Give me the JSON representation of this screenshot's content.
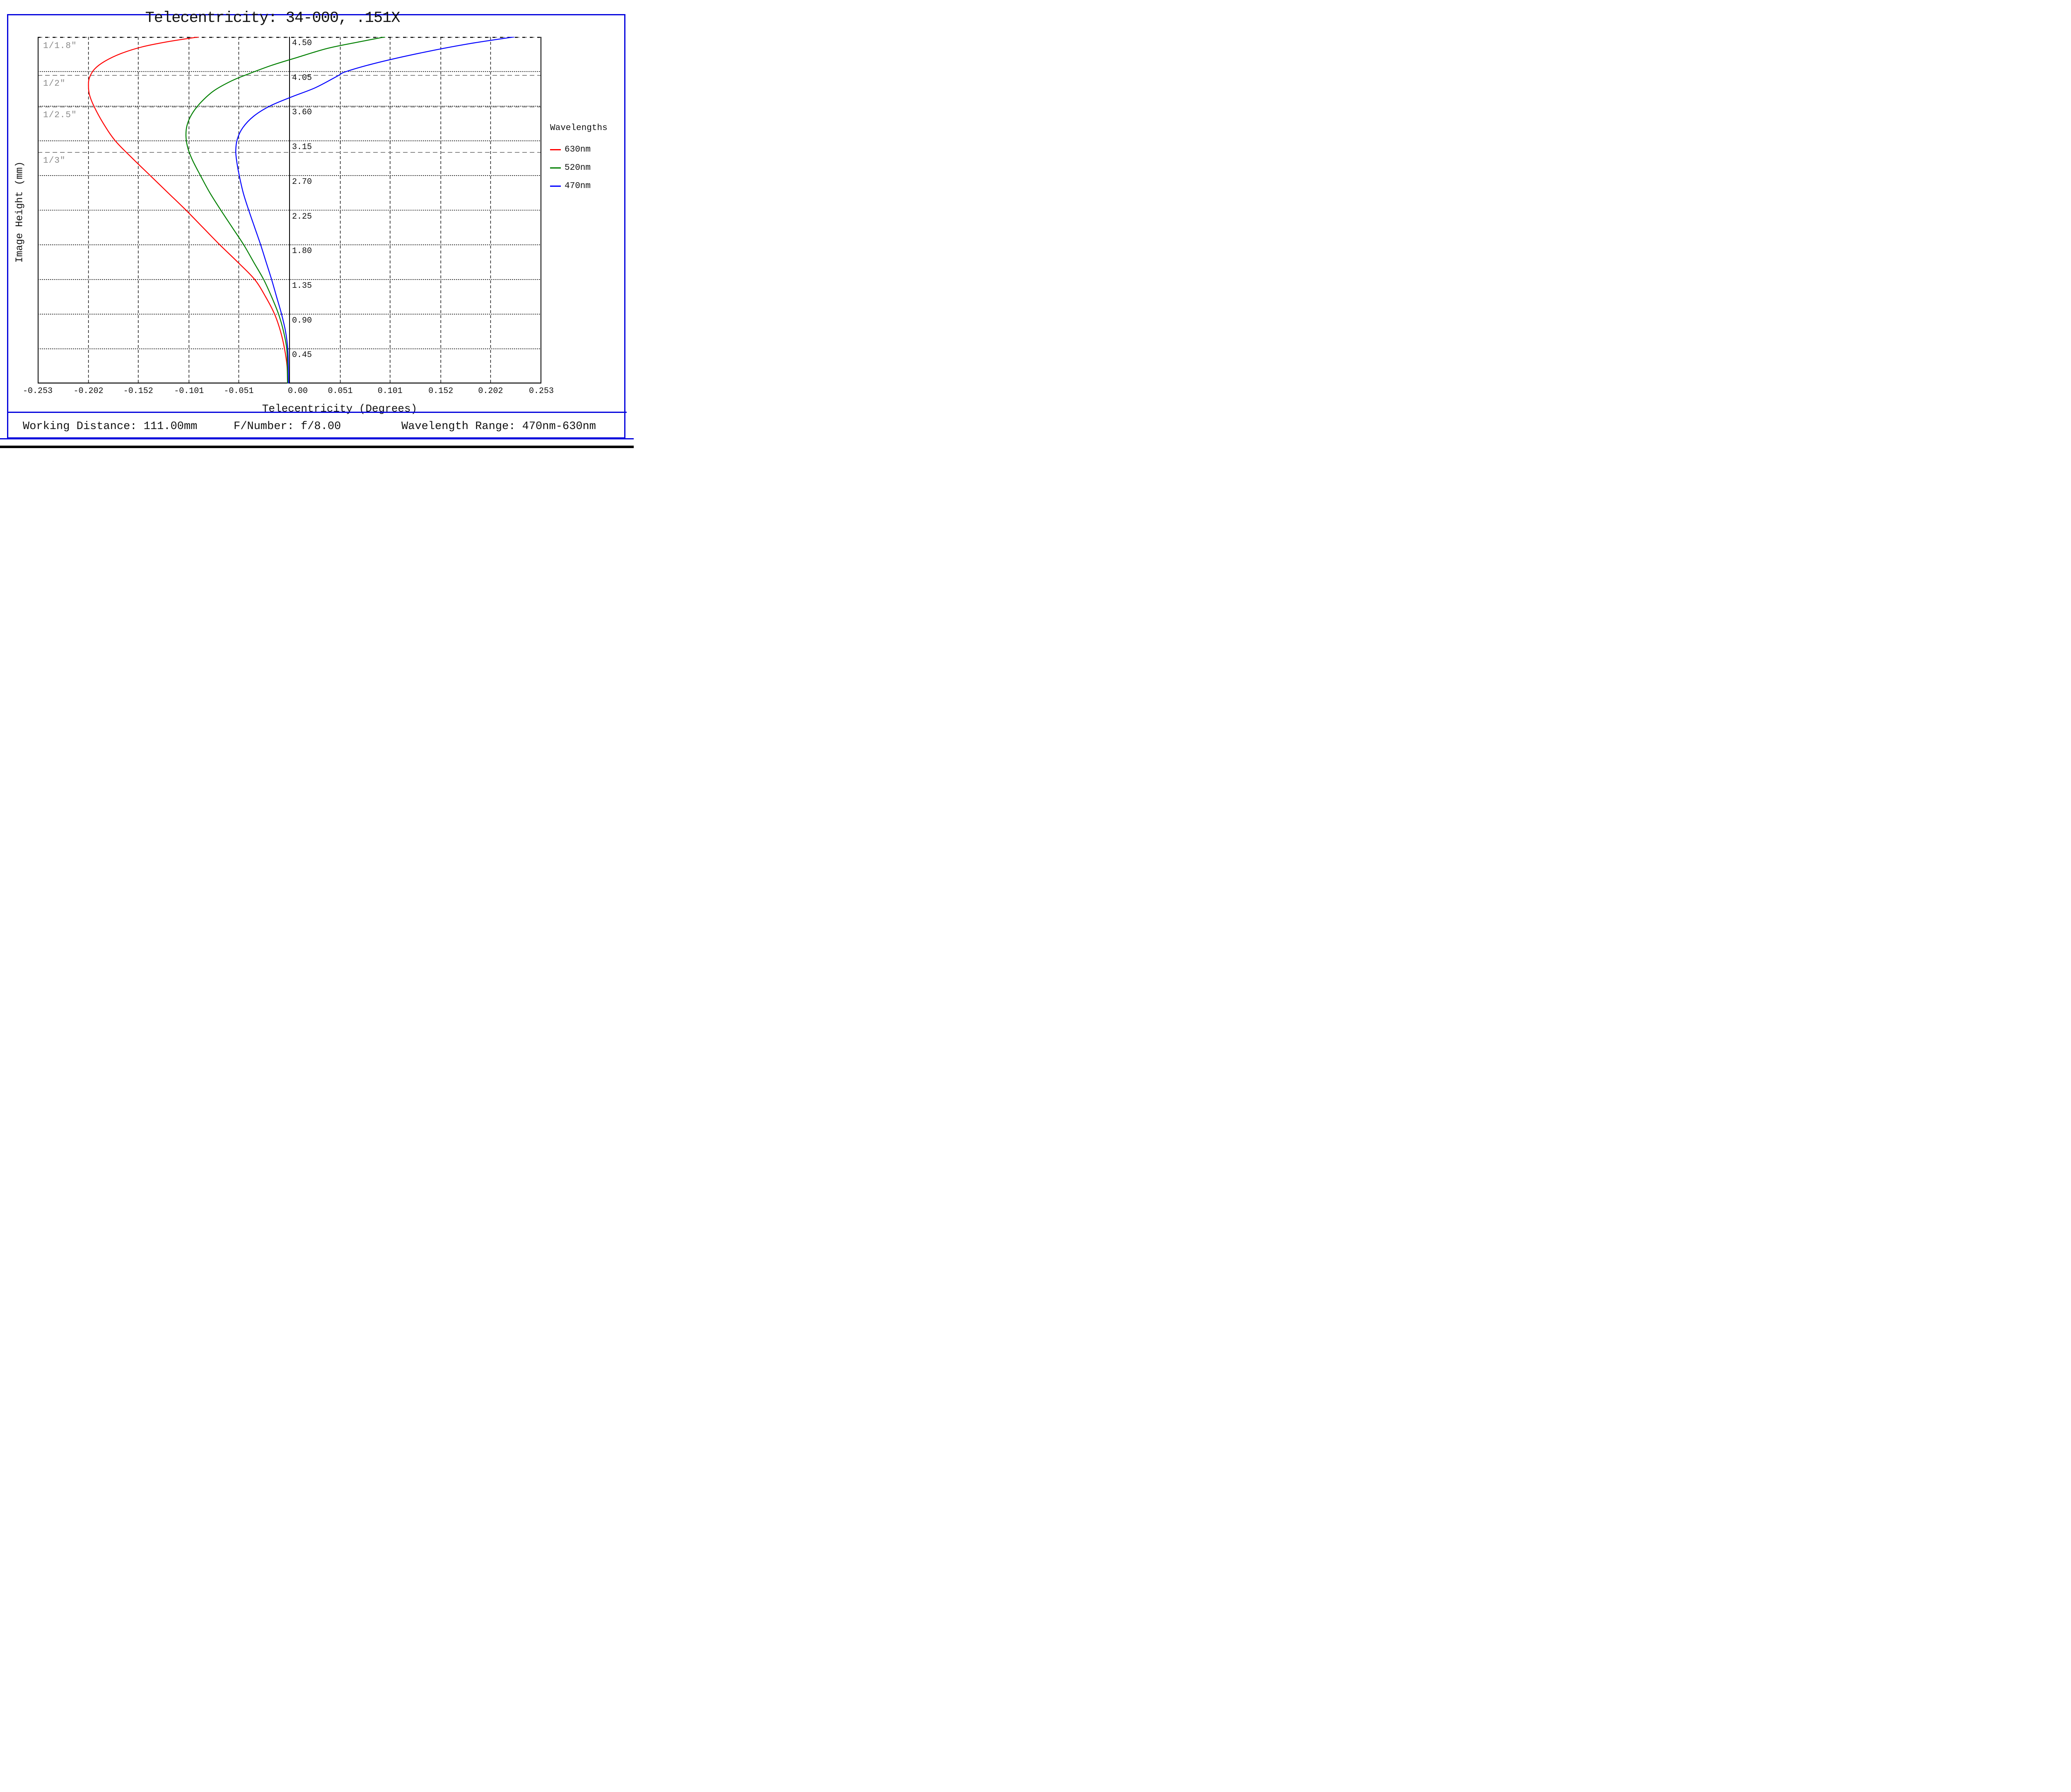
{
  "title": "Telecentricity: 34-000, .151X",
  "legend": {
    "title": "Wavelengths",
    "entries": [
      {
        "label": "630nm",
        "color": "#ff0000"
      },
      {
        "label": "520nm",
        "color": "#007f00"
      },
      {
        "label": "470nm",
        "color": "#0000ff"
      }
    ]
  },
  "footer": {
    "working_distance": "Working Distance: 111.00mm",
    "f_number": "F/Number: f/8.00",
    "wavelength_range": "Wavelength Range: 470nm-630nm"
  },
  "colors": {
    "frame_blue": "#0505dd",
    "grid_black": "#000000",
    "reference_gray": "#8a8a8a",
    "bottom_bar_black": "#000000"
  },
  "chart_data": {
    "type": "line",
    "title": "Telecentricity: 34-000, .151X",
    "xlabel": "Telecentricity (Degrees)",
    "ylabel": "Image Height (mm)",
    "xlim": [
      -0.253,
      0.253
    ],
    "ylim": [
      0,
      4.5
    ],
    "grid": true,
    "legend_position": "right",
    "x_ticks": [
      {
        "value": -0.253,
        "label": "-0.253"
      },
      {
        "value": -0.202,
        "label": "-0.202"
      },
      {
        "value": -0.152,
        "label": "-0.152"
      },
      {
        "value": -0.101,
        "label": "-0.101"
      },
      {
        "value": -0.051,
        "label": "-0.051"
      },
      {
        "value": 0.0,
        "label": "0.00"
      },
      {
        "value": 0.051,
        "label": "0.051"
      },
      {
        "value": 0.101,
        "label": "0.101"
      },
      {
        "value": 0.152,
        "label": "0.152"
      },
      {
        "value": 0.202,
        "label": "0.202"
      },
      {
        "value": 0.253,
        "label": "0.253"
      }
    ],
    "y_ticks": [
      {
        "value": 4.5,
        "label": "4.50"
      },
      {
        "value": 4.05,
        "label": "4.05"
      },
      {
        "value": 3.6,
        "label": "3.60"
      },
      {
        "value": 3.15,
        "label": "3.15"
      },
      {
        "value": 2.7,
        "label": "2.70"
      },
      {
        "value": 2.25,
        "label": "2.25"
      },
      {
        "value": 1.8,
        "label": "1.80"
      },
      {
        "value": 1.35,
        "label": "1.35"
      },
      {
        "value": 0.9,
        "label": "0.90"
      },
      {
        "value": 0.45,
        "label": "0.45"
      }
    ],
    "reference_lines": [
      {
        "label": "1/1.8\"",
        "value": 4.49
      },
      {
        "label": "1/2\"",
        "value": 4.0
      },
      {
        "label": "1/2.5\"",
        "value": 3.59
      },
      {
        "label": "1/3\"",
        "value": 3.0
      }
    ],
    "series": [
      {
        "name": "630nm",
        "color": "#ff0000",
        "points": [
          [
            -0.002,
            0.0
          ],
          [
            -0.0025,
            0.225
          ],
          [
            -0.005,
            0.45
          ],
          [
            -0.009,
            0.675
          ],
          [
            -0.015,
            0.9
          ],
          [
            -0.024,
            1.125
          ],
          [
            -0.035,
            1.35
          ],
          [
            -0.052,
            1.575
          ],
          [
            -0.07,
            1.8
          ],
          [
            -0.087,
            2.025
          ],
          [
            -0.104,
            2.25
          ],
          [
            -0.122,
            2.475
          ],
          [
            -0.14,
            2.7
          ],
          [
            -0.158,
            2.925
          ],
          [
            -0.175,
            3.15
          ],
          [
            -0.187,
            3.375
          ],
          [
            -0.1965,
            3.6
          ],
          [
            -0.201,
            3.75
          ],
          [
            -0.202,
            3.87
          ],
          [
            -0.201,
            3.97
          ],
          [
            -0.196,
            4.08
          ],
          [
            -0.186,
            4.18
          ],
          [
            -0.17,
            4.28
          ],
          [
            -0.148,
            4.37
          ],
          [
            -0.121,
            4.44
          ],
          [
            -0.091,
            4.5
          ]
        ]
      },
      {
        "name": "520nm",
        "color": "#007f00",
        "points": [
          [
            -0.002,
            0.0
          ],
          [
            -0.0022,
            0.225
          ],
          [
            -0.0028,
            0.45
          ],
          [
            -0.006,
            0.675
          ],
          [
            -0.011,
            0.9
          ],
          [
            -0.018,
            1.125
          ],
          [
            -0.026,
            1.35
          ],
          [
            -0.036,
            1.575
          ],
          [
            -0.046,
            1.8
          ],
          [
            -0.0575,
            2.025
          ],
          [
            -0.069,
            2.25
          ],
          [
            -0.08,
            2.475
          ],
          [
            -0.0895,
            2.7
          ],
          [
            -0.0975,
            2.9
          ],
          [
            -0.102,
            3.05
          ],
          [
            -0.104,
            3.2
          ],
          [
            -0.103,
            3.35
          ],
          [
            -0.098,
            3.5
          ],
          [
            -0.089,
            3.65
          ],
          [
            -0.076,
            3.8
          ],
          [
            -0.058,
            3.93
          ],
          [
            -0.041,
            4.02
          ],
          [
            -0.018,
            4.13
          ],
          [
            0.007,
            4.23
          ],
          [
            0.038,
            4.35
          ],
          [
            0.068,
            4.43
          ],
          [
            0.096,
            4.5
          ]
        ]
      },
      {
        "name": "470nm",
        "color": "#0000ff",
        "points": [
          [
            -0.001,
            0.0
          ],
          [
            -0.0012,
            0.225
          ],
          [
            -0.0018,
            0.45
          ],
          [
            -0.004,
            0.675
          ],
          [
            -0.008,
            0.9
          ],
          [
            -0.013,
            1.125
          ],
          [
            -0.018,
            1.35
          ],
          [
            -0.0235,
            1.575
          ],
          [
            -0.029,
            1.8
          ],
          [
            -0.035,
            2.025
          ],
          [
            -0.041,
            2.25
          ],
          [
            -0.0465,
            2.475
          ],
          [
            -0.0505,
            2.7
          ],
          [
            -0.053,
            2.88
          ],
          [
            -0.054,
            3.02
          ],
          [
            -0.0525,
            3.17
          ],
          [
            -0.047,
            3.32
          ],
          [
            -0.036,
            3.47
          ],
          [
            -0.02,
            3.6
          ],
          [
            0.002,
            3.72
          ],
          [
            0.026,
            3.84
          ],
          [
            0.048,
            3.99
          ],
          [
            0.057,
            4.05
          ],
          [
            0.09,
            4.17
          ],
          [
            0.135,
            4.3
          ],
          [
            0.18,
            4.41
          ],
          [
            0.226,
            4.5
          ]
        ]
      }
    ]
  }
}
